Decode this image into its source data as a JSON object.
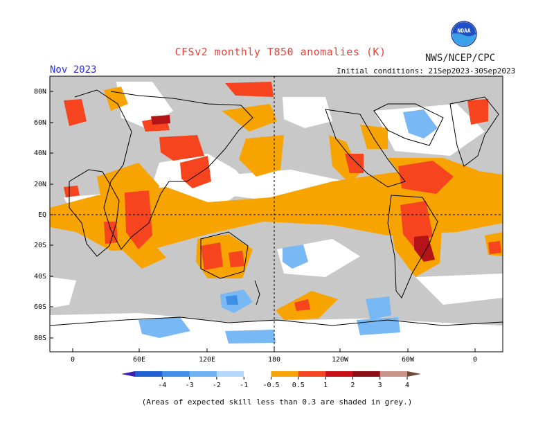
{
  "header": {
    "title": "CFSv2 monthly T850 anomalies (K)",
    "org": "NWS/NCEP/CPC",
    "month": "Nov 2023",
    "initial_conditions": "Initial conditions: 21Sep2023-30Sep2023",
    "logo_text": "NOAA"
  },
  "axes": {
    "lat_labels": [
      "80N",
      "60N",
      "40N",
      "20N",
      "EQ",
      "20S",
      "40S",
      "60S",
      "80S"
    ],
    "lon_labels": [
      "0",
      "60E",
      "120E",
      "180",
      "120W",
      "60W",
      "0"
    ]
  },
  "legend": {
    "labels": [
      "-4",
      "-3",
      "-2",
      "-1",
      "-0.5",
      "0.5",
      "1",
      "2",
      "3",
      "4"
    ],
    "colors": [
      "#3a1fae",
      "#1f5fcf",
      "#3f8fe6",
      "#6fb2f2",
      "#b3d8fa",
      "#ffffff",
      "#f7a300",
      "#f5441e",
      "#c9101a",
      "#8b0f14",
      "#c8958a",
      "#6e4a3a"
    ]
  },
  "map_colors": {
    "grey": "#c8c8c8",
    "white": "#ffffff",
    "orange": "#f7a300",
    "red_orange": "#f5441e",
    "dark_red": "#b41418",
    "light_blue": "#78b8f4",
    "mid_blue": "#3f8fe6"
  },
  "footnote": "(Areas of expected skill less than 0.3 are shaded in grey.)"
}
